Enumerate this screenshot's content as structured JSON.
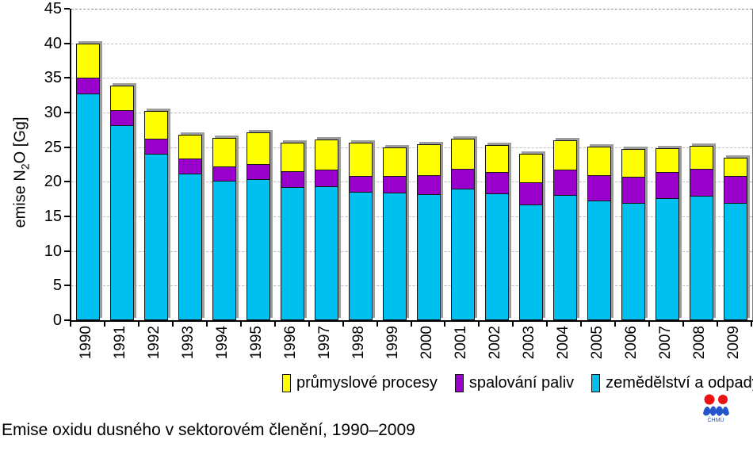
{
  "caption": "Emise oxidu dusného v sektorovém členění, 1990–2009",
  "logo": {
    "text": "ČHMÚ",
    "red": "#ee1111",
    "blue": "#2553c9"
  },
  "chart_data": {
    "type": "bar",
    "stacked": true,
    "title": "Emise oxidu dusného v sektorovém členění, 1990–2009",
    "ylabel": "emise N2O [Gg]",
    "ylabel_parts": {
      "pre": "emise N",
      "sub": "2",
      "post": "O [Gg]"
    },
    "xlabel": "",
    "ylim": [
      0,
      45
    ],
    "yticks": [
      0,
      5,
      10,
      15,
      20,
      25,
      30,
      35,
      40,
      45
    ],
    "grid": "horizontal-dashed",
    "legend_position": "bottom",
    "categories": [
      "1990",
      "1991",
      "1992",
      "1993",
      "1994",
      "1995",
      "1996",
      "1997",
      "1998",
      "1999",
      "2000",
      "2001",
      "2002",
      "2003",
      "2004",
      "2005",
      "2006",
      "2007",
      "2008",
      "2009"
    ],
    "series": [
      {
        "name": "zemědělství a odpady",
        "color": "#00c0f0",
        "values": [
          32.9,
          28.2,
          24.1,
          21.2,
          20.2,
          20.4,
          19.3,
          19.4,
          18.6,
          18.5,
          18.3,
          19.0,
          18.4,
          16.7,
          18.2,
          17.4,
          17.0,
          17.6,
          18.0,
          17.0
        ]
      },
      {
        "name": "spalování paliv",
        "color": "#9900cc",
        "values": [
          2.3,
          2.3,
          2.2,
          2.2,
          2.1,
          2.2,
          2.4,
          2.4,
          2.4,
          2.4,
          2.7,
          2.9,
          3.1,
          3.3,
          3.6,
          3.6,
          3.8,
          3.8,
          4.0,
          3.9
        ]
      },
      {
        "name": "průmyslové procesy",
        "color": "#ffff00",
        "values": [
          4.8,
          3.4,
          3.9,
          3.4,
          4.0,
          4.5,
          4.0,
          4.3,
          4.7,
          4.1,
          4.4,
          4.3,
          3.8,
          4.0,
          4.2,
          4.1,
          3.9,
          3.4,
          3.2,
          2.6
        ]
      }
    ],
    "totals": [
      40.0,
      33.9,
      30.2,
      26.8,
      26.3,
      27.1,
      25.7,
      26.1,
      25.7,
      25.0,
      25.4,
      26.2,
      25.3,
      24.0,
      26.0,
      25.1,
      24.7,
      24.8,
      25.2,
      23.5
    ]
  }
}
